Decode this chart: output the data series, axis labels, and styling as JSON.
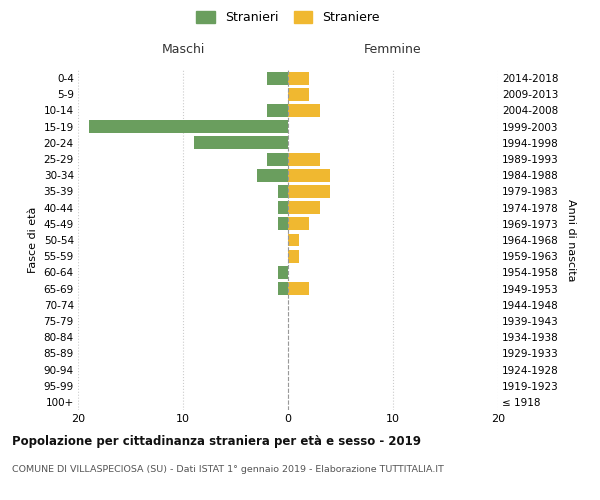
{
  "age_groups": [
    "100+",
    "95-99",
    "90-94",
    "85-89",
    "80-84",
    "75-79",
    "70-74",
    "65-69",
    "60-64",
    "55-59",
    "50-54",
    "45-49",
    "40-44",
    "35-39",
    "30-34",
    "25-29",
    "20-24",
    "15-19",
    "10-14",
    "5-9",
    "0-4"
  ],
  "birth_years": [
    "≤ 1918",
    "1919-1923",
    "1924-1928",
    "1929-1933",
    "1934-1938",
    "1939-1943",
    "1944-1948",
    "1949-1953",
    "1954-1958",
    "1959-1963",
    "1964-1968",
    "1969-1973",
    "1974-1978",
    "1979-1983",
    "1984-1988",
    "1989-1993",
    "1994-1998",
    "1999-2003",
    "2004-2008",
    "2009-2013",
    "2014-2018"
  ],
  "maschi": [
    0,
    0,
    0,
    0,
    0,
    0,
    0,
    1,
    1,
    0,
    0,
    1,
    1,
    1,
    3,
    2,
    9,
    19,
    2,
    0,
    2
  ],
  "femmine": [
    0,
    0,
    0,
    0,
    0,
    0,
    0,
    2,
    0,
    1,
    1,
    2,
    3,
    4,
    4,
    3,
    0,
    0,
    3,
    2,
    2
  ],
  "maschi_color": "#6a9e5e",
  "femmine_color": "#f0b830",
  "center_line_color": "#999999",
  "grid_color": "#cccccc",
  "bg_color": "#ffffff",
  "title": "Popolazione per cittadinanza straniera per età e sesso - 2019",
  "subtitle": "COMUNE DI VILLASPECIOSA (SU) - Dati ISTAT 1° gennaio 2019 - Elaborazione TUTTITALIA.IT",
  "ylabel_left": "Fasce di età",
  "ylabel_right": "Anni di nascita",
  "xlabel_left": "Maschi",
  "xlabel_right": "Femmine",
  "legend_maschi": "Stranieri",
  "legend_femmine": "Straniere",
  "xlim": 20,
  "bar_height": 0.8
}
